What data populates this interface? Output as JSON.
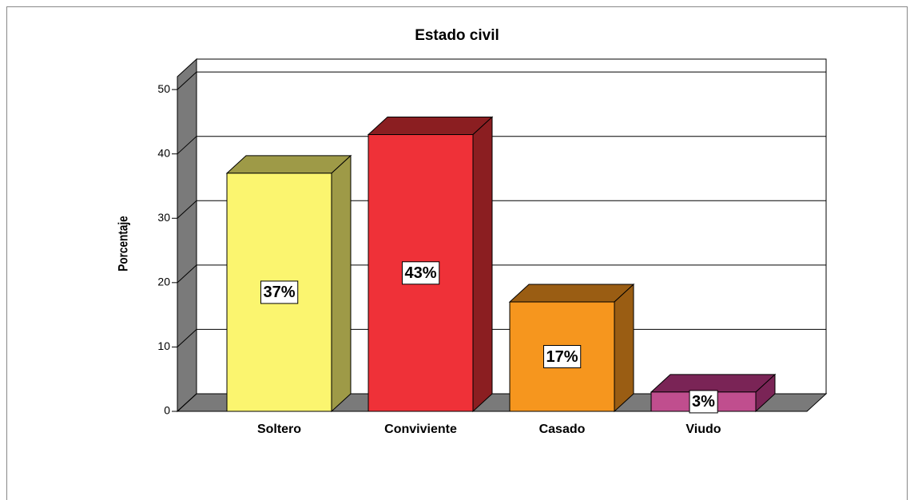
{
  "chart_data": {
    "type": "bar3d",
    "title": "Estado civil",
    "y_label": "Porcentaje",
    "categories": [
      "Soltero",
      "Conviviente",
      "Casado",
      "Viudo"
    ],
    "values": [
      37,
      43,
      17,
      3
    ],
    "value_labels": [
      "37%",
      "43%",
      "17%",
      "3%"
    ],
    "colors": [
      "#fbf56f",
      "#ef3138",
      "#f6961e",
      "#c04e8e"
    ],
    "side_colors": [
      "#9e9a47",
      "#8b1e21",
      "#9a5d13",
      "#7a2456"
    ],
    "ylim": [
      0,
      52
    ],
    "yticks": [
      0,
      10,
      20,
      30,
      40,
      50
    ],
    "grid": true
  }
}
